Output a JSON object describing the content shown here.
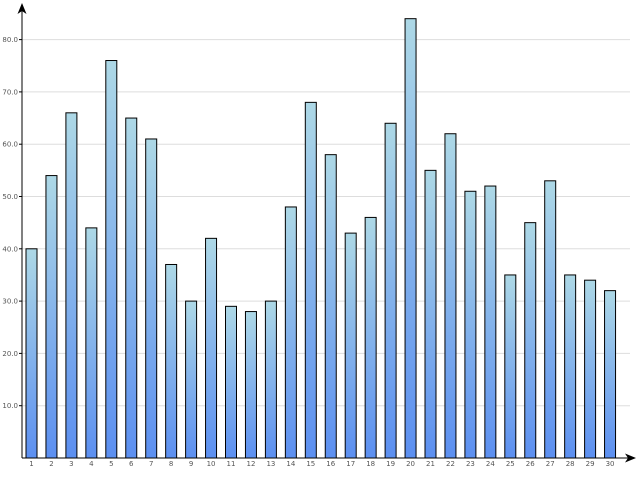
{
  "chart_data": {
    "type": "bar",
    "title": "",
    "xlabel": "",
    "ylabel": "",
    "categories": [
      "1",
      "2",
      "3",
      "4",
      "5",
      "6",
      "7",
      "8",
      "9",
      "10",
      "11",
      "12",
      "13",
      "14",
      "15",
      "16",
      "17",
      "18",
      "19",
      "20",
      "21",
      "22",
      "23",
      "24",
      "25",
      "26",
      "27",
      "28",
      "29",
      "30"
    ],
    "values": [
      40,
      54,
      66,
      44,
      76,
      65,
      61,
      37,
      30,
      42,
      29,
      28,
      30,
      48,
      68,
      58,
      43,
      46,
      64,
      84,
      55,
      62,
      51,
      52,
      35,
      45,
      53,
      35,
      34,
      32
    ],
    "y_ticks": [
      "10.0",
      "20.0",
      "30.0",
      "40.0",
      "50.0",
      "60.0",
      "70.0",
      "80.0"
    ],
    "ylim": [
      0,
      88
    ],
    "grid": true,
    "legend": "none",
    "colors": {
      "bar_top": "#add8e6",
      "bar_bottom": "#5c8ff0",
      "bar_stroke": "#000000",
      "grid": "#dddddd",
      "axis": "#000000"
    }
  }
}
